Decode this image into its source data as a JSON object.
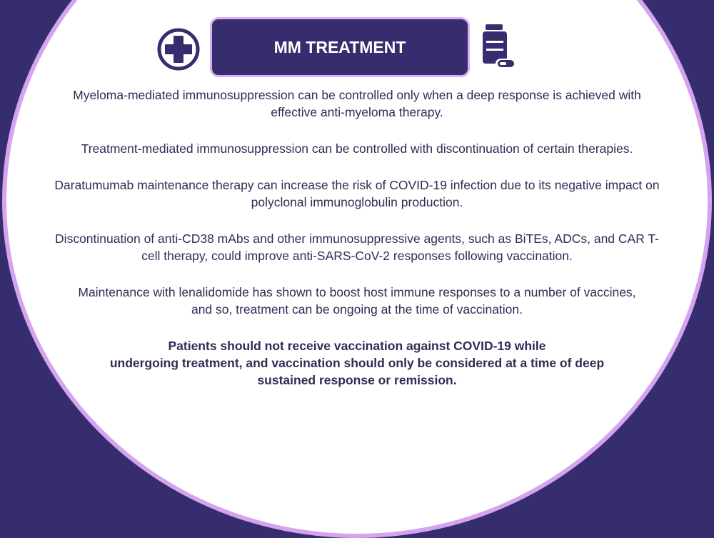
{
  "slide": {
    "title": "MM TREATMENT",
    "icons": {
      "left": "medical-cross-icon",
      "right": "pill-bottle-icon"
    },
    "colors": {
      "background": "#352d6e",
      "accent_border": "#d6a3ef",
      "text": "#302c55"
    },
    "paragraphs": [
      [
        "Myeloma-mediated immunosuppression can be controlled only when a deep response is achieved with",
        "effective anti-myeloma therapy."
      ],
      [
        "Treatment-mediated immunosuppression can be controlled with discontinuation of certain therapies."
      ],
      [
        "Daratumumab maintenance therapy can increase the risk of COVID-19 infection due to its negative impact on",
        "polyclonal immunoglobulin production."
      ],
      [
        "Discontinuation of anti-CD38 mAbs and other immunosuppressive agents, such as BiTEs, ADCs, and CAR T-",
        "cell therapy, could improve anti-SARS-CoV-2 responses following vaccination."
      ],
      [
        "Maintenance with lenalidomide has shown to boost host immune responses to a number of vaccines,",
        "and so, treatment can be ongoing at the time of vaccination."
      ]
    ],
    "conclusion": [
      "Patients should not receive vaccination against COVID-19 while",
      "undergoing treatment, and vaccination should only be considered at a time of deep",
      "sustained response or remission."
    ]
  }
}
